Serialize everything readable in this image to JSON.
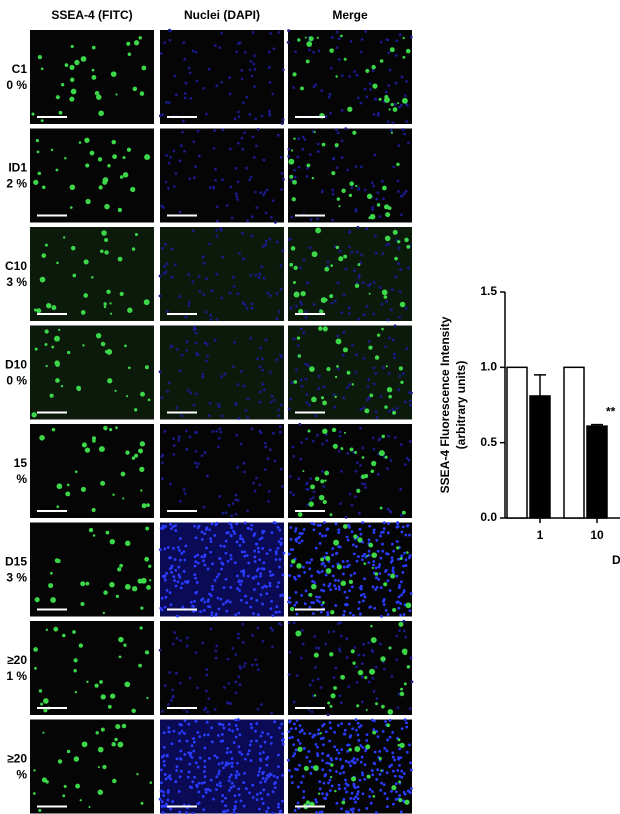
{
  "figure": {
    "column_headers": [
      "SSEA-4 (FITC)",
      "Nuclei (DAPI)",
      "Merge"
    ],
    "rows": [
      {
        "label": "C1",
        "value": "0 %"
      },
      {
        "label": "ID1",
        "value": "2 %"
      },
      {
        "label": "C10",
        "value": "3 %"
      },
      {
        "label": "D10",
        "value": "0 %"
      },
      {
        "label": "15",
        "value": "%"
      },
      {
        "label": "D15",
        "value": "3 %"
      },
      {
        "label": "≥20",
        "value": "1 %"
      },
      {
        "label": "≥20",
        "value": "%"
      }
    ]
  },
  "chart_data": {
    "type": "bar",
    "ylabel": "SSEA-4 Fluorescence Intensity",
    "ylabel2": "(arbitrary units)",
    "xlabel": "D",
    "categories": [
      "1",
      "10"
    ],
    "series": [
      {
        "color": "#ffffff",
        "values": [
          1,
          1
        ]
      },
      {
        "color": "#000000",
        "values": [
          0.81,
          0.61
        ],
        "errors": [
          0.14,
          0.01
        ]
      }
    ],
    "annotation": "**",
    "ylim": [
      0,
      1.5
    ],
    "yticks": [
      {
        "value": 0,
        "label": "0.0"
      },
      0.5,
      {
        "value": 1,
        "label": "1.0"
      },
      1.5
    ]
  }
}
